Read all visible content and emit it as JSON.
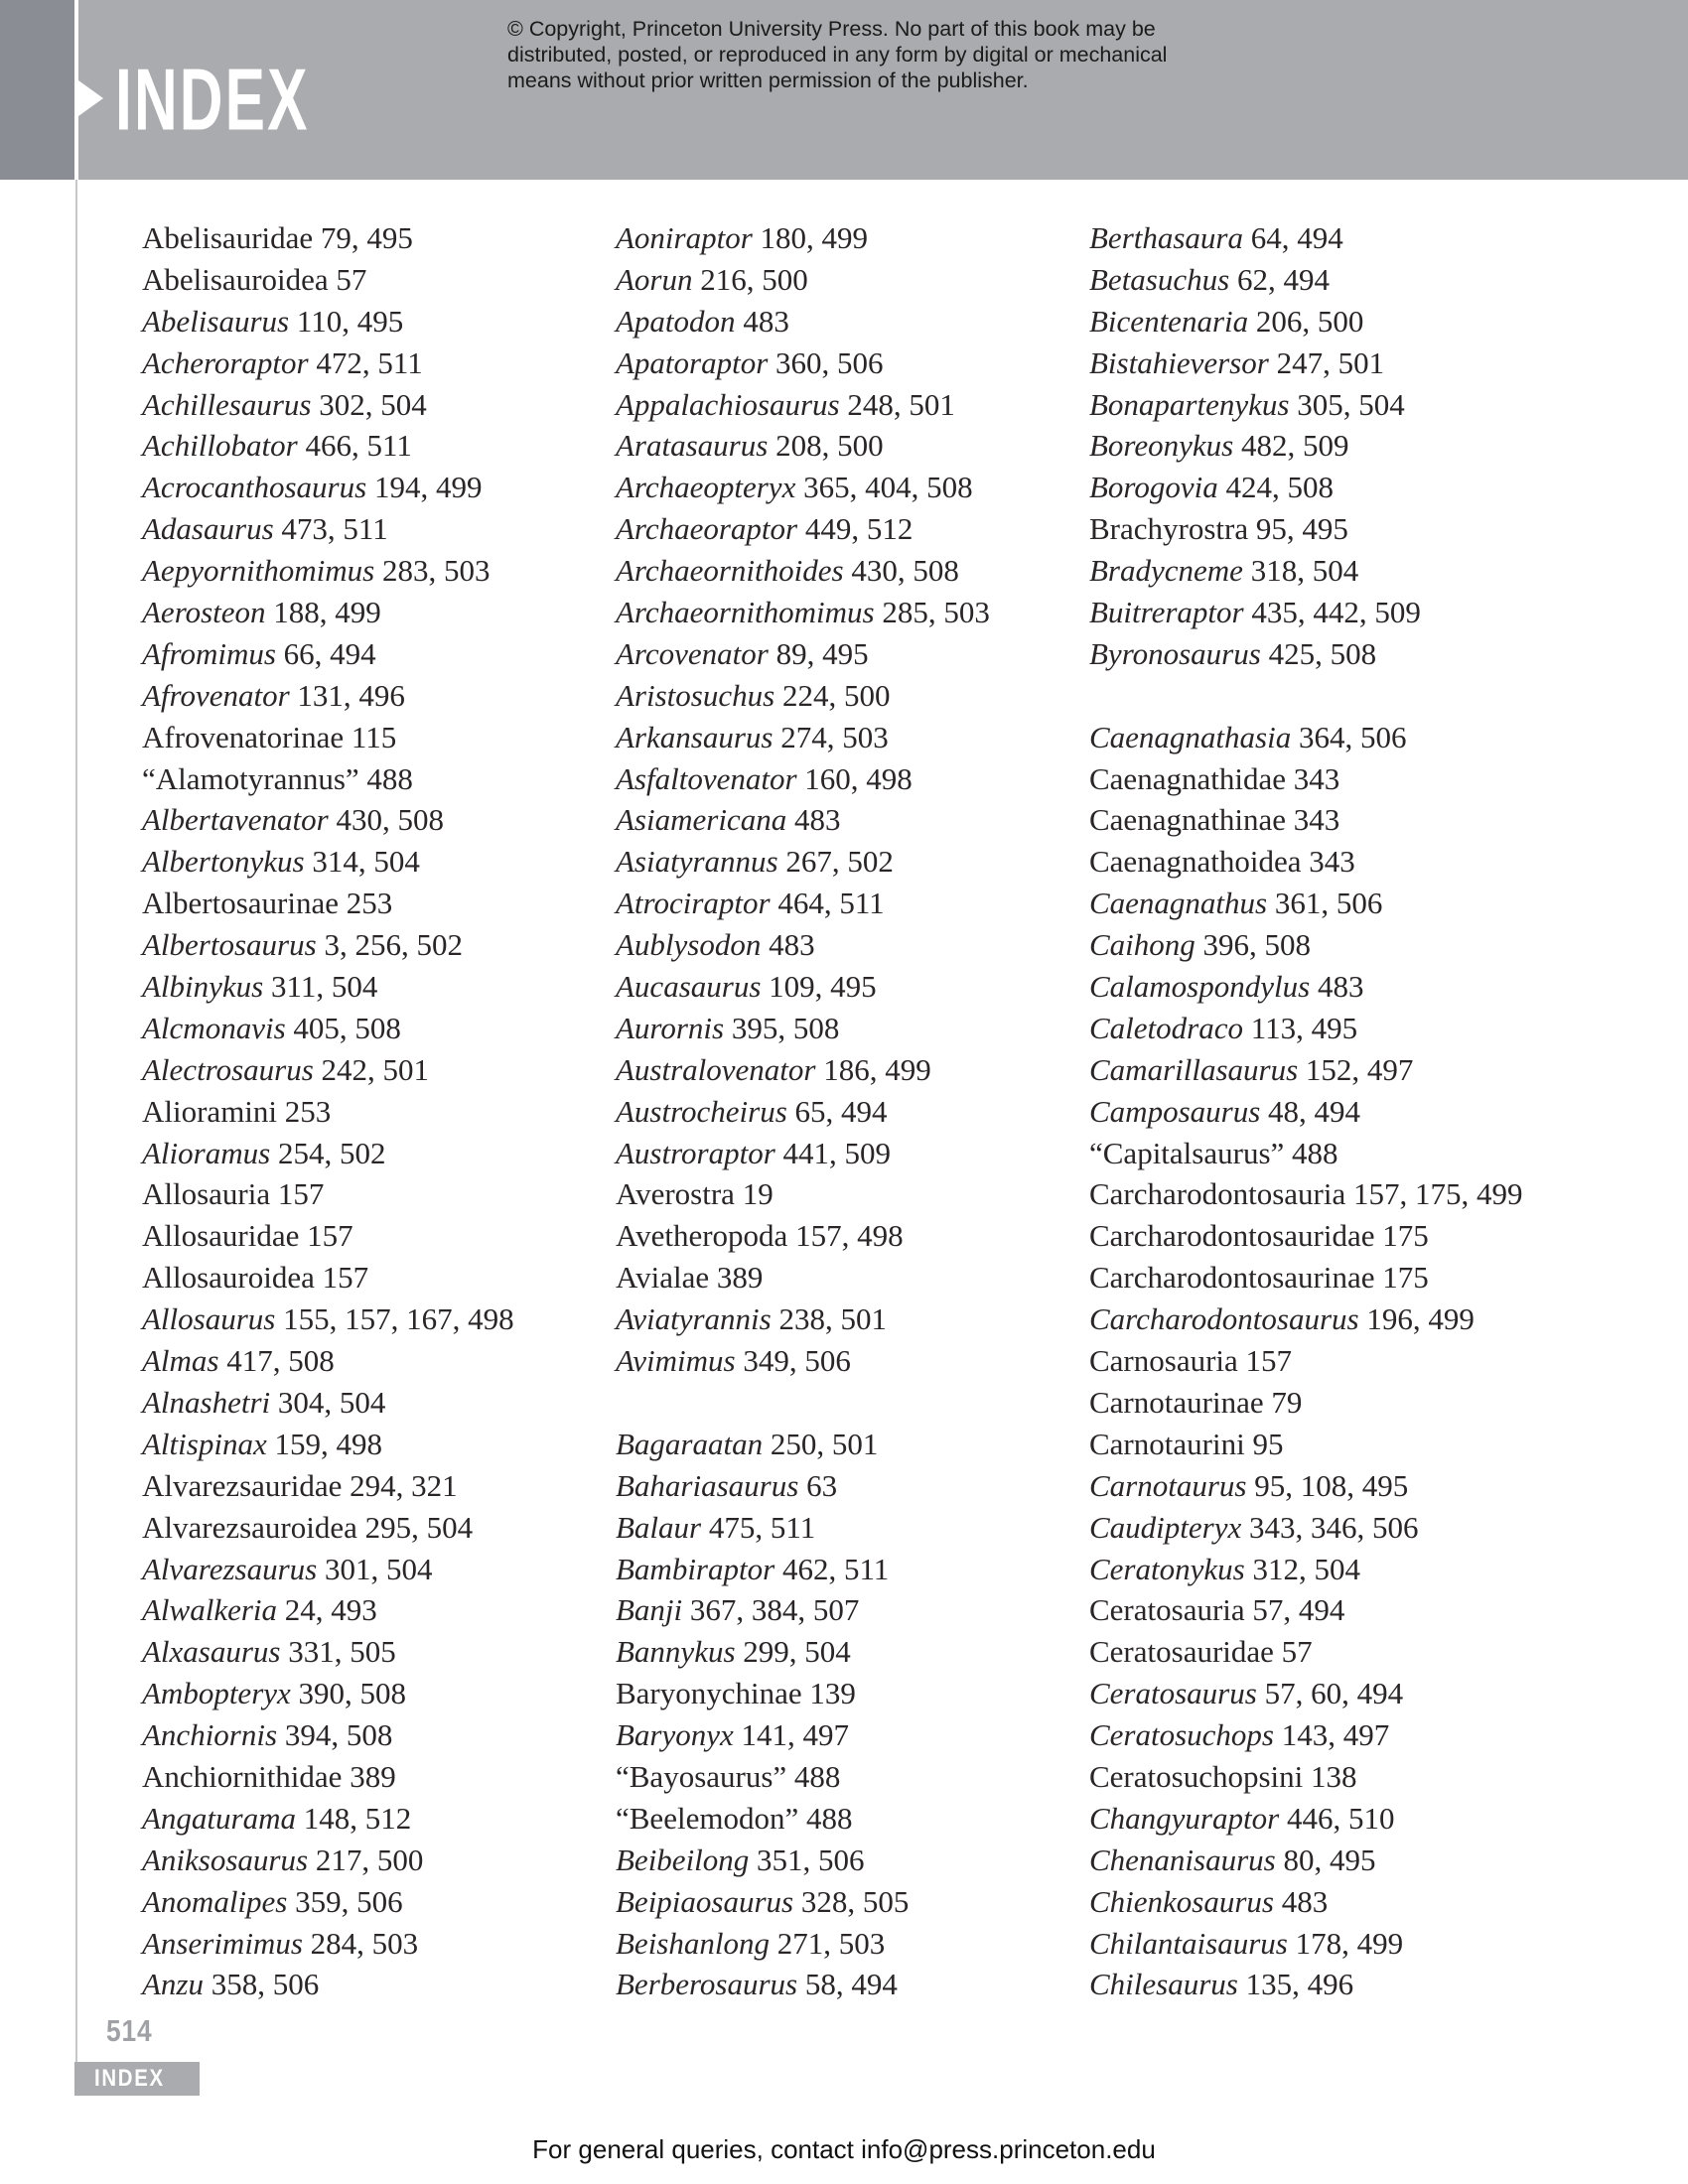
{
  "header": {
    "title": "INDEX",
    "copyright_lines": [
      "© Copyright, Princeton University Press. No part of this book may be",
      "distributed, posted, or reproduced in any form by digital or mechanical",
      "means without prior written permission of the publisher."
    ]
  },
  "colors": {
    "sidebar_dark_gray": "#8a8d93",
    "band_gray": "#a9abae",
    "entry_text": "#2a2627",
    "page_number_gray": "#9fa1a5",
    "edge_line_gray": "#c6c7c9"
  },
  "index": {
    "columns": [
      [
        {
          "t": "Abelisauridae",
          "p": "79, 495",
          "i": 0
        },
        {
          "t": "Abelisauroidea",
          "p": "57",
          "i": 0
        },
        {
          "t": "Abelisaurus",
          "p": "110, 495",
          "i": 1
        },
        {
          "t": "Acheroraptor",
          "p": "472, 511",
          "i": 1
        },
        {
          "t": "Achillesaurus",
          "p": "302, 504",
          "i": 1
        },
        {
          "t": "Achillobator",
          "p": "466, 511",
          "i": 1
        },
        {
          "t": "Acrocanthosaurus",
          "p": "194, 499",
          "i": 1
        },
        {
          "t": "Adasaurus",
          "p": "473, 511",
          "i": 1
        },
        {
          "t": "Aepyornithomimus",
          "p": "283, 503",
          "i": 1
        },
        {
          "t": "Aerosteon",
          "p": "188, 499",
          "i": 1
        },
        {
          "t": "Afromimus",
          "p": "66, 494",
          "i": 1
        },
        {
          "t": "Afrovenator",
          "p": "131, 496",
          "i": 1
        },
        {
          "t": "Afrovenatorinae",
          "p": "115",
          "i": 0
        },
        {
          "t": "“Alamotyrannus”",
          "p": "488",
          "i": 0
        },
        {
          "t": "Albertavenator",
          "p": "430, 508",
          "i": 1
        },
        {
          "t": "Albertonykus",
          "p": "314, 504",
          "i": 1
        },
        {
          "t": "Albertosaurinae",
          "p": "253",
          "i": 0
        },
        {
          "t": "Albertosaurus",
          "p": "3, 256, 502",
          "i": 1
        },
        {
          "t": "Albinykus",
          "p": "311, 504",
          "i": 1
        },
        {
          "t": "Alcmonavis",
          "p": "405, 508",
          "i": 1
        },
        {
          "t": "Alectrosaurus",
          "p": "242, 501",
          "i": 1
        },
        {
          "t": "Alioramini",
          "p": "253",
          "i": 0
        },
        {
          "t": "Alioramus",
          "p": "254, 502",
          "i": 1
        },
        {
          "t": "Allosauria",
          "p": "157",
          "i": 0
        },
        {
          "t": "Allosauridae",
          "p": "157",
          "i": 0
        },
        {
          "t": "Allosauroidea",
          "p": "157",
          "i": 0
        },
        {
          "t": "Allosaurus",
          "p": "155, 157, 167, 498",
          "i": 1
        },
        {
          "t": "Almas",
          "p": "417, 508",
          "i": 1
        },
        {
          "t": "Alnashetri",
          "p": "304, 504",
          "i": 1
        },
        {
          "t": "Altispinax",
          "p": "159, 498",
          "i": 1
        },
        {
          "t": "Alvarezsauridae",
          "p": "294, 321",
          "i": 0
        },
        {
          "t": "Alvarezsauroidea",
          "p": "295, 504",
          "i": 0
        },
        {
          "t": "Alvarezsaurus",
          "p": "301, 504",
          "i": 1
        },
        {
          "t": "Alwalkeria",
          "p": "24, 493",
          "i": 1
        },
        {
          "t": "Alxasaurus",
          "p": "331, 505",
          "i": 1
        },
        {
          "t": "Ambopteryx",
          "p": "390, 508",
          "i": 1
        },
        {
          "t": "Anchiornis",
          "p": "394, 508",
          "i": 1
        },
        {
          "t": "Anchiornithidae",
          "p": "389",
          "i": 0
        },
        {
          "t": "Angaturama",
          "p": "148, 512",
          "i": 1
        },
        {
          "t": "Aniksosaurus",
          "p": "217, 500",
          "i": 1
        },
        {
          "t": "Anomalipes",
          "p": "359, 506",
          "i": 1
        },
        {
          "t": "Anserimimus",
          "p": "284, 503",
          "i": 1
        },
        {
          "t": "Anzu",
          "p": "358, 506",
          "i": 1
        }
      ],
      [
        {
          "t": "Aoniraptor",
          "p": "180, 499",
          "i": 1
        },
        {
          "t": "Aorun",
          "p": "216, 500",
          "i": 1
        },
        {
          "t": "Apatodon",
          "p": "483",
          "i": 1
        },
        {
          "t": "Apatoraptor",
          "p": "360, 506",
          "i": 1
        },
        {
          "t": "Appalachiosaurus",
          "p": "248, 501",
          "i": 1
        },
        {
          "t": "Aratasaurus",
          "p": "208, 500",
          "i": 1
        },
        {
          "t": "Archaeopteryx",
          "p": "365, 404, 508",
          "i": 1
        },
        {
          "t": "Archaeoraptor",
          "p": "449, 512",
          "i": 1
        },
        {
          "t": "Archaeornithoides",
          "p": "430, 508",
          "i": 1
        },
        {
          "t": "Archaeornithomimus",
          "p": "285, 503",
          "i": 1
        },
        {
          "t": "Arcovenator",
          "p": "89, 495",
          "i": 1
        },
        {
          "t": "Aristosuchus",
          "p": "224, 500",
          "i": 1
        },
        {
          "t": "Arkansaurus",
          "p": "274, 503",
          "i": 1
        },
        {
          "t": "Asfaltovenator",
          "p": "160, 498",
          "i": 1
        },
        {
          "t": "Asiamericana",
          "p": "483",
          "i": 1
        },
        {
          "t": "Asiatyrannus",
          "p": "267, 502",
          "i": 1
        },
        {
          "t": "Atrociraptor",
          "p": "464, 511",
          "i": 1
        },
        {
          "t": "Aublysodon",
          "p": "483",
          "i": 1
        },
        {
          "t": "Aucasaurus",
          "p": "109, 495",
          "i": 1
        },
        {
          "t": "Aurornis",
          "p": "395, 508",
          "i": 1
        },
        {
          "t": "Australovenator",
          "p": "186, 499",
          "i": 1
        },
        {
          "t": "Austrocheirus",
          "p": "65, 494",
          "i": 1
        },
        {
          "t": "Austroraptor",
          "p": "441, 509",
          "i": 1
        },
        {
          "t": "Averostra",
          "p": "19",
          "i": 0
        },
        {
          "t": "Avetheropoda",
          "p": "157, 498",
          "i": 0
        },
        {
          "t": "Avialae",
          "p": "389",
          "i": 0
        },
        {
          "t": "Aviatyrannis",
          "p": "238, 501",
          "i": 1
        },
        {
          "t": "Avimimus",
          "p": "349, 506",
          "i": 1
        },
        null,
        {
          "t": "Bagaraatan",
          "p": "250, 501",
          "i": 1
        },
        {
          "t": "Bahariasaurus",
          "p": "63",
          "i": 1
        },
        {
          "t": "Balaur",
          "p": "475, 511",
          "i": 1
        },
        {
          "t": "Bambiraptor",
          "p": "462, 511",
          "i": 1
        },
        {
          "t": "Banji",
          "p": "367, 384, 507",
          "i": 1
        },
        {
          "t": "Bannykus",
          "p": "299, 504",
          "i": 1
        },
        {
          "t": "Baryonychinae",
          "p": "139",
          "i": 0
        },
        {
          "t": "Baryonyx",
          "p": "141, 497",
          "i": 1
        },
        {
          "t": "“Bayosaurus”",
          "p": "488",
          "i": 0
        },
        {
          "t": "“Beelemodon”",
          "p": "488",
          "i": 0
        },
        {
          "t": "Beibeilong",
          "p": "351, 506",
          "i": 1
        },
        {
          "t": "Beipiaosaurus",
          "p": "328, 505",
          "i": 1
        },
        {
          "t": "Beishanlong",
          "p": "271, 503",
          "i": 1
        },
        {
          "t": "Berberosaurus",
          "p": "58, 494",
          "i": 1
        }
      ],
      [
        {
          "t": "Berthasaura",
          "p": "64, 494",
          "i": 1
        },
        {
          "t": "Betasuchus",
          "p": "62, 494",
          "i": 1
        },
        {
          "t": "Bicentenaria",
          "p": "206, 500",
          "i": 1
        },
        {
          "t": "Bistahieversor",
          "p": "247, 501",
          "i": 1
        },
        {
          "t": "Bonapartenykus",
          "p": "305, 504",
          "i": 1
        },
        {
          "t": "Boreonykus",
          "p": "482, 509",
          "i": 1
        },
        {
          "t": "Borogovia",
          "p": "424, 508",
          "i": 1
        },
        {
          "t": "Brachyrostra",
          "p": "95, 495",
          "i": 0
        },
        {
          "t": "Bradycneme",
          "p": "318, 504",
          "i": 1
        },
        {
          "t": "Buitreraptor",
          "p": "435, 442, 509",
          "i": 1
        },
        {
          "t": "Byronosaurus",
          "p": "425, 508",
          "i": 1
        },
        null,
        {
          "t": "Caenagnathasia",
          "p": "364, 506",
          "i": 1
        },
        {
          "t": "Caenagnathidae",
          "p": "343",
          "i": 0
        },
        {
          "t": "Caenagnathinae",
          "p": "343",
          "i": 0
        },
        {
          "t": "Caenagnathoidea",
          "p": "343",
          "i": 0
        },
        {
          "t": "Caenagnathus",
          "p": "361, 506",
          "i": 1
        },
        {
          "t": "Caihong",
          "p": "396, 508",
          "i": 1
        },
        {
          "t": "Calamospondylus",
          "p": "483",
          "i": 1
        },
        {
          "t": "Caletodraco",
          "p": "113, 495",
          "i": 1
        },
        {
          "t": "Camarillasaurus",
          "p": "152, 497",
          "i": 1
        },
        {
          "t": "Camposaurus",
          "p": "48, 494",
          "i": 1
        },
        {
          "t": "“Capitalsaurus”",
          "p": "488",
          "i": 0
        },
        {
          "t": "Carcharodontosauria",
          "p": "157, 175, 499",
          "i": 0
        },
        {
          "t": "Carcharodontosauridae",
          "p": "175",
          "i": 0
        },
        {
          "t": "Carcharodontosaurinae",
          "p": "175",
          "i": 0
        },
        {
          "t": "Carcharodontosaurus",
          "p": "196, 499",
          "i": 1
        },
        {
          "t": "Carnosauria",
          "p": "157",
          "i": 0
        },
        {
          "t": "Carnotaurinae",
          "p": "79",
          "i": 0
        },
        {
          "t": "Carnotaurini",
          "p": "95",
          "i": 0
        },
        {
          "t": "Carnotaurus",
          "p": "95, 108, 495",
          "i": 1
        },
        {
          "t": "Caudipteryx",
          "p": "343, 346, 506",
          "i": 1
        },
        {
          "t": "Ceratonykus",
          "p": "312, 504",
          "i": 1
        },
        {
          "t": "Ceratosauria",
          "p": "57, 494",
          "i": 0
        },
        {
          "t": "Ceratosauridae",
          "p": "57",
          "i": 0
        },
        {
          "t": "Ceratosaurus",
          "p": "57, 60, 494",
          "i": 1
        },
        {
          "t": "Ceratosuchops",
          "p": "143, 497",
          "i": 1
        },
        {
          "t": "Ceratosuchopsini",
          "p": "138",
          "i": 0
        },
        {
          "t": "Changyuraptor",
          "p": "446, 510",
          "i": 1
        },
        {
          "t": "Chenanisaurus",
          "p": "80, 495",
          "i": 1
        },
        {
          "t": "Chienkosaurus",
          "p": "483",
          "i": 1
        },
        {
          "t": "Chilantaisaurus",
          "p": "178, 499",
          "i": 1
        },
        {
          "t": "Chilesaurus",
          "p": "135, 496",
          "i": 1
        }
      ]
    ]
  },
  "footer": {
    "page_number": "514",
    "section_label": "INDEX",
    "query_line": "For general queries, contact info@press.princeton.edu"
  }
}
